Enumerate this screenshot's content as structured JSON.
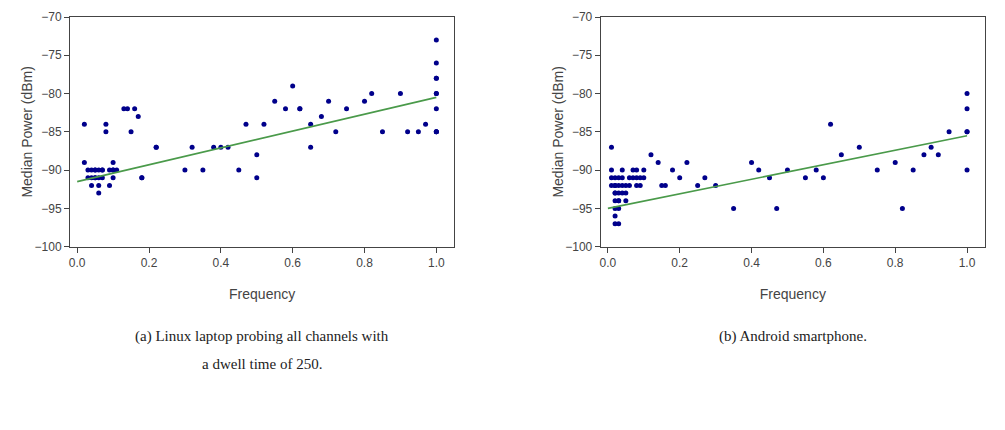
{
  "chart_data": [
    {
      "type": "scatter",
      "xlabel": "Frequency",
      "ylabel": "Median Power (dBm)",
      "xlim": [
        -0.02,
        1.05
      ],
      "ylim": [
        -100,
        -70
      ],
      "xticks": [
        {
          "value": 0.0,
          "label": "0.0"
        },
        0.2,
        0.4,
        0.6,
        0.8,
        {
          "value": 1.0,
          "label": "1.0"
        }
      ],
      "yticks": [
        {
          "value": -100,
          "label": "−100"
        },
        {
          "value": -95,
          "label": "−95"
        },
        {
          "value": -90,
          "label": "−90"
        },
        {
          "value": -85,
          "label": "−85"
        },
        {
          "value": -80,
          "label": "−80"
        },
        {
          "value": -75,
          "label": "−75"
        },
        {
          "value": -70,
          "label": "−70"
        }
      ],
      "grid": false,
      "annotations": [
        "(a) Linux laptop probing all channels with",
        "a dwell time of 250."
      ],
      "series": [
        {
          "type": "scatter",
          "marker": "circle",
          "color": "#00008B",
          "x": [
            0.02,
            0.02,
            0.03,
            0.03,
            0.04,
            0.04,
            0.04,
            0.05,
            0.05,
            0.05,
            0.05,
            0.06,
            0.06,
            0.06,
            0.06,
            0.07,
            0.07,
            0.07,
            0.08,
            0.08,
            0.09,
            0.09,
            0.1,
            0.1,
            0.1,
            0.1,
            0.11,
            0.13,
            0.14,
            0.15,
            0.16,
            0.17,
            0.18,
            0.18,
            0.22,
            0.22,
            0.3,
            0.32,
            0.35,
            0.38,
            0.4,
            0.42,
            0.45,
            0.47,
            0.5,
            0.5,
            0.52,
            0.55,
            0.58,
            0.6,
            0.62,
            0.62,
            0.65,
            0.65,
            0.68,
            0.7,
            0.72,
            0.75,
            0.8,
            0.82,
            0.85,
            0.9,
            0.92,
            0.95,
            0.97,
            1.0,
            1.0,
            1.0,
            1.0,
            1.0,
            1.0,
            1.0,
            1.0,
            1.0,
            1.0
          ],
          "values": [
            -84,
            -89,
            -91,
            -90,
            -91,
            -90,
            -92,
            -90,
            -91,
            -90,
            -91,
            -90,
            -91,
            -92,
            -93,
            -90,
            -91,
            -90,
            -84,
            -85,
            -90,
            -92,
            -90,
            -91,
            -90,
            -89,
            -90,
            -82,
            -82,
            -85,
            -82,
            -83,
            -91,
            -91,
            -87,
            -87,
            -90,
            -87,
            -90,
            -87,
            -87,
            -87,
            -90,
            -84,
            -88,
            -91,
            -84,
            -81,
            -82,
            -79,
            -82,
            -82,
            -84,
            -87,
            -83,
            -81,
            -85,
            -82,
            -81,
            -80,
            -85,
            -80,
            -85,
            -85,
            -84,
            -73,
            -76,
            -78,
            -78,
            -80,
            -80,
            -82,
            -85,
            -85,
            -85
          ]
        },
        {
          "type": "line",
          "line_style": "solid",
          "color": "#4a9a4a",
          "x": [
            0.0,
            1.0
          ],
          "values": [
            -91.5,
            -80.5
          ]
        }
      ]
    },
    {
      "type": "scatter",
      "xlabel": "Frequency",
      "ylabel": "Median Power (dBm)",
      "xlim": [
        -0.02,
        1.05
      ],
      "ylim": [
        -100,
        -70
      ],
      "xticks": [
        {
          "value": 0.0,
          "label": "0.0"
        },
        0.2,
        0.4,
        0.6,
        0.8,
        {
          "value": 1.0,
          "label": "1.0"
        }
      ],
      "yticks": [
        {
          "value": -100,
          "label": "−100"
        },
        {
          "value": -95,
          "label": "−95"
        },
        {
          "value": -90,
          "label": "−90"
        },
        {
          "value": -85,
          "label": "−85"
        },
        {
          "value": -80,
          "label": "−80"
        },
        {
          "value": -75,
          "label": "−75"
        },
        {
          "value": -70,
          "label": "−70"
        }
      ],
      "grid": false,
      "annotations": [
        "(b) Android smartphone."
      ],
      "series": [
        {
          "type": "scatter",
          "marker": "circle",
          "color": "#00008B",
          "x": [
            0.01,
            0.01,
            0.01,
            0.01,
            0.02,
            0.02,
            0.02,
            0.02,
            0.02,
            0.02,
            0.02,
            0.02,
            0.02,
            0.03,
            0.03,
            0.03,
            0.03,
            0.03,
            0.03,
            0.03,
            0.04,
            0.04,
            0.04,
            0.04,
            0.05,
            0.05,
            0.05,
            0.06,
            0.06,
            0.07,
            0.07,
            0.08,
            0.08,
            0.08,
            0.09,
            0.09,
            0.1,
            0.1,
            0.12,
            0.14,
            0.15,
            0.16,
            0.18,
            0.2,
            0.22,
            0.25,
            0.27,
            0.3,
            0.35,
            0.4,
            0.42,
            0.45,
            0.47,
            0.5,
            0.55,
            0.58,
            0.6,
            0.62,
            0.65,
            0.7,
            0.75,
            0.8,
            0.82,
            0.85,
            0.88,
            0.9,
            0.92,
            0.95,
            1.0,
            1.0,
            1.0,
            1.0,
            1.0
          ],
          "values": [
            -87,
            -90,
            -91,
            -92,
            -91,
            -92,
            -92,
            -93,
            -93,
            -94,
            -95,
            -96,
            -97,
            -91,
            -92,
            -93,
            -94,
            -94,
            -95,
            -97,
            -90,
            -91,
            -92,
            -93,
            -92,
            -93,
            -94,
            -91,
            -92,
            -90,
            -91,
            -90,
            -91,
            -92,
            -91,
            -92,
            -90,
            -91,
            -88,
            -89,
            -92,
            -92,
            -90,
            -91,
            -89,
            -92,
            -91,
            -92,
            -95,
            -89,
            -90,
            -91,
            -95,
            -90,
            -91,
            -90,
            -91,
            -84,
            -88,
            -87,
            -90,
            -89,
            -95,
            -90,
            -88,
            -87,
            -88,
            -85,
            -80,
            -82,
            -85,
            -85,
            -90
          ]
        },
        {
          "type": "line",
          "line_style": "solid",
          "color": "#4a9a4a",
          "x": [
            0.0,
            1.0
          ],
          "values": [
            -95.0,
            -85.5
          ]
        }
      ]
    }
  ]
}
